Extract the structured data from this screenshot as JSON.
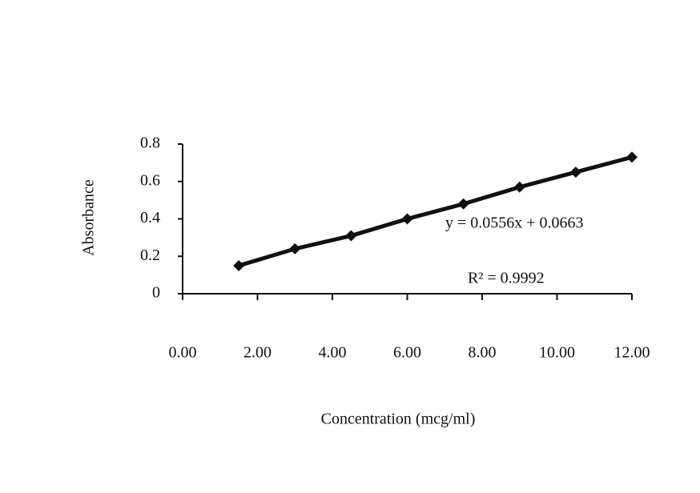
{
  "chart_data": {
    "type": "line",
    "x": [
      1.5,
      3,
      4.5,
      6,
      7.5,
      9,
      10.5,
      12
    ],
    "values": [
      0.15,
      0.24,
      0.31,
      0.4,
      0.48,
      0.57,
      0.65,
      0.73
    ],
    "color": "#111111",
    "xlabel": "Concentration (mcg/ml)",
    "ylabel": "Absorbance",
    "xlim": [
      0,
      12
    ],
    "ylim": [
      0,
      0.8
    ],
    "xticks": [
      {
        "value": 0,
        "label": "0.00"
      },
      {
        "value": 2,
        "label": "2.00"
      },
      {
        "value": 4,
        "label": "4.00"
      },
      {
        "value": 6,
        "label": "6.00"
      },
      {
        "value": 8,
        "label": "8.00"
      },
      {
        "value": 10,
        "label": "10.00"
      },
      {
        "value": 12,
        "label": "12.00"
      }
    ],
    "yticks": [
      0,
      0.2,
      0.4,
      0.6,
      0.8
    ],
    "annotations": [
      "y = 0.0556x + 0.0663",
      "R² = 0.9992"
    ]
  }
}
